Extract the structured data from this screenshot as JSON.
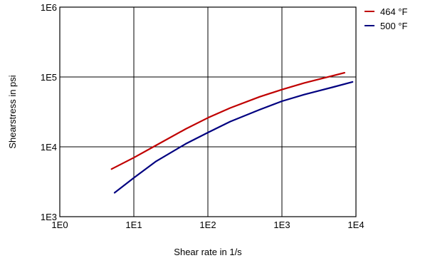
{
  "chart_data": {
    "type": "line",
    "title": "",
    "xlabel": "Shear rate in 1/s",
    "ylabel": "Shearstress in psi",
    "x_scale": "log",
    "y_scale": "log",
    "xlim": [
      1,
      10000
    ],
    "ylim": [
      1000,
      1000000
    ],
    "x_ticks": [
      {
        "value": 1,
        "label": "1E0"
      },
      {
        "value": 10,
        "label": "1E1"
      },
      {
        "value": 100,
        "label": "1E2"
      },
      {
        "value": 1000,
        "label": "1E3"
      },
      {
        "value": 10000,
        "label": "1E4"
      }
    ],
    "y_ticks": [
      {
        "value": 1000,
        "label": "1E3"
      },
      {
        "value": 10000,
        "label": "1E4"
      },
      {
        "value": 100000,
        "label": "1E5"
      },
      {
        "value": 1000000,
        "label": "1E6"
      }
    ],
    "grid": true,
    "legend_position": "top-right (outside plot)",
    "series": [
      {
        "name": "464 °F",
        "color": "#c00000",
        "x": [
          5,
          10,
          20,
          50,
          100,
          200,
          500,
          1000,
          2000,
          5000,
          7000
        ],
        "y": [
          4800,
          7000,
          10500,
          18000,
          26000,
          36000,
          52000,
          66000,
          82000,
          105000,
          115000
        ]
      },
      {
        "name": "500 °F",
        "color": "#000080",
        "x": [
          5.5,
          10,
          20,
          50,
          100,
          200,
          500,
          1000,
          2000,
          5000,
          9000
        ],
        "y": [
          2200,
          3600,
          6200,
          11000,
          16000,
          23000,
          34000,
          45000,
          56000,
          72000,
          85000
        ]
      }
    ]
  }
}
